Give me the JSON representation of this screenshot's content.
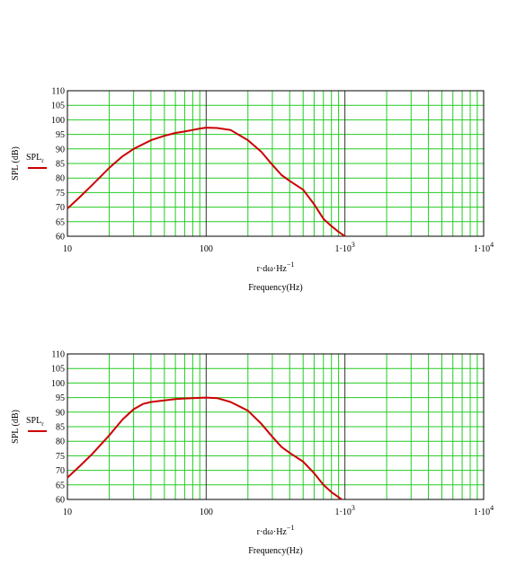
{
  "chart_data": [
    {
      "type": "line",
      "ylabel": "SPL (dB)",
      "x_expression": "r·dω·Hz",
      "x_expression_exp": "−1",
      "xlabel": "Frequency(Hz)",
      "legend_main": "SPL",
      "legend_sub": "r",
      "x_scale": "log",
      "xlim": [
        10,
        10000
      ],
      "ylim": [
        60,
        110
      ],
      "grid": true,
      "line_color": "#cc0000",
      "grid_color": "#22cc22",
      "yticks": [
        "60",
        "65",
        "70",
        "75",
        "80",
        "85",
        "90",
        "95",
        "100",
        "105",
        "110"
      ],
      "xticks": [
        {
          "base": "10",
          "sup": ""
        },
        {
          "base": "100",
          "sup": ""
        },
        {
          "base": "1·10",
          "sup": "3"
        },
        {
          "base": "1·10",
          "sup": "4"
        }
      ],
      "series": [
        {
          "x": [
            10,
            12,
            15,
            20,
            25,
            30,
            40,
            50,
            60,
            70,
            80,
            90,
            100,
            120,
            150,
            200,
            250,
            300,
            350,
            400,
            500,
            600,
            700,
            800,
            900,
            1000
          ],
          "y": [
            69.5,
            73,
            77.5,
            83.5,
            87.5,
            90,
            93,
            94.5,
            95.5,
            96,
            96.5,
            97,
            97.3,
            97.2,
            96.5,
            93,
            89,
            84.5,
            81,
            79,
            76,
            71,
            66,
            63.5,
            61.5,
            60
          ]
        }
      ]
    },
    {
      "type": "line",
      "ylabel": "SPL (dB)",
      "x_expression": "r·dω·Hz",
      "x_expression_exp": "−1",
      "xlabel": "Frequency(Hz)",
      "legend_main": "SPL",
      "legend_sub": "r",
      "x_scale": "log",
      "xlim": [
        10,
        10000
      ],
      "ylim": [
        60,
        110
      ],
      "grid": true,
      "line_color": "#cc0000",
      "grid_color": "#22cc22",
      "yticks": [
        "60",
        "65",
        "70",
        "75",
        "80",
        "85",
        "90",
        "95",
        "100",
        "105",
        "110"
      ],
      "xticks": [
        {
          "base": "10",
          "sup": ""
        },
        {
          "base": "100",
          "sup": ""
        },
        {
          "base": "1·10",
          "sup": "3"
        },
        {
          "base": "1·10",
          "sup": "4"
        }
      ],
      "series": [
        {
          "x": [
            10,
            12,
            15,
            20,
            25,
            30,
            35,
            40,
            50,
            60,
            70,
            80,
            90,
            100,
            120,
            150,
            200,
            250,
            300,
            350,
            400,
            500,
            600,
            700,
            800,
            900,
            950
          ],
          "y": [
            67.5,
            71,
            75.5,
            82,
            87.5,
            91,
            92.8,
            93.5,
            94,
            94.5,
            94.7,
            94.8,
            94.9,
            95,
            94.8,
            93.5,
            90.5,
            86,
            81.5,
            78,
            76,
            73,
            69,
            65,
            62.5,
            60.8,
            60
          ]
        }
      ]
    }
  ]
}
